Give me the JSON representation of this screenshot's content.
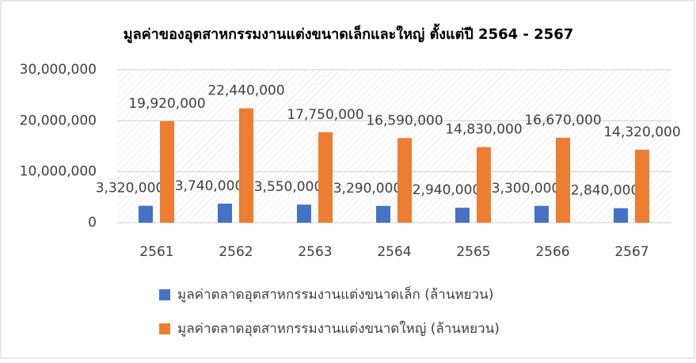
{
  "chart_data": {
    "type": "bar",
    "title": "มูลค่าของอุตสาหกรรมงานแต่งขนาดเล็กและใหญ่ ตั้งแต่ปี 2564 - 2567",
    "categories": [
      "2561",
      "2562",
      "2563",
      "2564",
      "2565",
      "2566",
      "2567"
    ],
    "series": [
      {
        "name": "มูลค่าตลาดอุตสาหกรรมงานแต่งขนาดเล็ก (ล้านหยวน)",
        "color": "#4472c4",
        "values": [
          3320000,
          3740000,
          3550000,
          3290000,
          2940000,
          3300000,
          2840000
        ],
        "value_labels": [
          "3,320,000",
          "3,740,000",
          "3,550,000",
          "3,290,000",
          "2,940,000",
          "3,300,000",
          "2,840,000"
        ]
      },
      {
        "name": "มูลค่าตลาดอุตสาหกรรมงานแต่งขนาดใหญ่ (ล้านหยวน)",
        "color": "#ed7d31",
        "values": [
          19920000,
          22440000,
          17750000,
          16590000,
          14830000,
          16670000,
          14320000
        ],
        "value_labels": [
          "19,920,000",
          "22,440,000",
          "17,750,000",
          "16,590,000",
          "14,830,000",
          "16,670,000",
          "14,320,000"
        ]
      }
    ],
    "ylim": [
      0,
      30000000
    ],
    "yticks": [
      0,
      {
        "value": 10000000,
        "label": "10,000,000"
      },
      {
        "value": 20000000,
        "label": "20,000,000"
      },
      {
        "value": 30000000,
        "label": "30,000,000"
      }
    ],
    "grid": true
  }
}
